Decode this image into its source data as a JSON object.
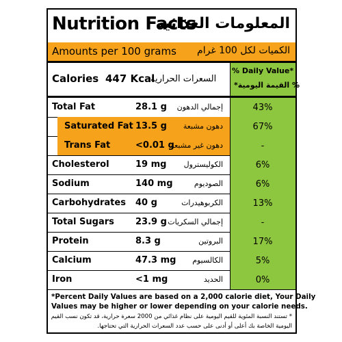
{
  "header": {
    "title_en": "Nutrition Facts",
    "title_ar": "المعلومات الغذائية",
    "amount_en": "Amounts per 100 grams",
    "amount_ar": "الكميات لكل 100 غرام"
  },
  "calories": {
    "label_en": "Calories",
    "value": "447 Kcal",
    "label_ar": "السعرات الحرارية",
    "dv_en": "% Daily Value*",
    "dv_ar": "% القيمة اليومية*"
  },
  "rows": [
    {
      "label_en": "Total Fat",
      "value": "28.1 g",
      "label_ar": "إجمالي الدهون",
      "pct": "43%"
    },
    {
      "label_en": "Saturated Fat",
      "value": "13.5 g",
      "label_ar": "دهون مشبعة",
      "pct": "67%"
    },
    {
      "label_en": "Trans Fat",
      "value": "<0.01 g",
      "label_ar": "دهون غير مشبعة",
      "pct": "-"
    },
    {
      "label_en": "Cholesterol",
      "value": "19 mg",
      "label_ar": "الكوليسترول",
      "pct": "6%"
    },
    {
      "label_en": "Sodium",
      "value": "140 mg",
      "label_ar": "الصوديوم",
      "pct": "6%"
    },
    {
      "label_en": "Carbohydrates",
      "value": "40 g",
      "label_ar": "الكربوهيدرات",
      "pct": "13%"
    },
    {
      "label_en": "Total Sugars",
      "value": "23.9 g",
      "label_ar": "إجمالي السكريات",
      "pct": "-"
    },
    {
      "label_en": "Protein",
      "value": "8.3 g",
      "label_ar": "البروتين",
      "pct": "17%"
    },
    {
      "label_en": "Calcium",
      "value": "47.3 mg",
      "label_ar": "الكالسيوم",
      "pct": "5%"
    },
    {
      "label_en": "Iron",
      "value": "<1 mg",
      "label_ar": "الحديد",
      "pct": "0%"
    }
  ],
  "footnote": {
    "en_line1": "*Percent Daily Values are based on a 2,000 calorie diet, Your Daily",
    "en_line2": "Values may be higher or lower depending on your calorie needs.",
    "ar_line1": "* تستند النسبة المئوية للقيم اليومية على نظام غذائي من 2000 سعرة حرارية، قد تكون نسب القيم",
    "ar_line2": "اليومية الخاصة بك أعلى أو أدنى على حسب عدد السعرات الحرارية التي تحتاجها."
  },
  "colors": {
    "accent_orange": "#f7a21b",
    "accent_green": "#8dc63f",
    "border": "#000000"
  }
}
